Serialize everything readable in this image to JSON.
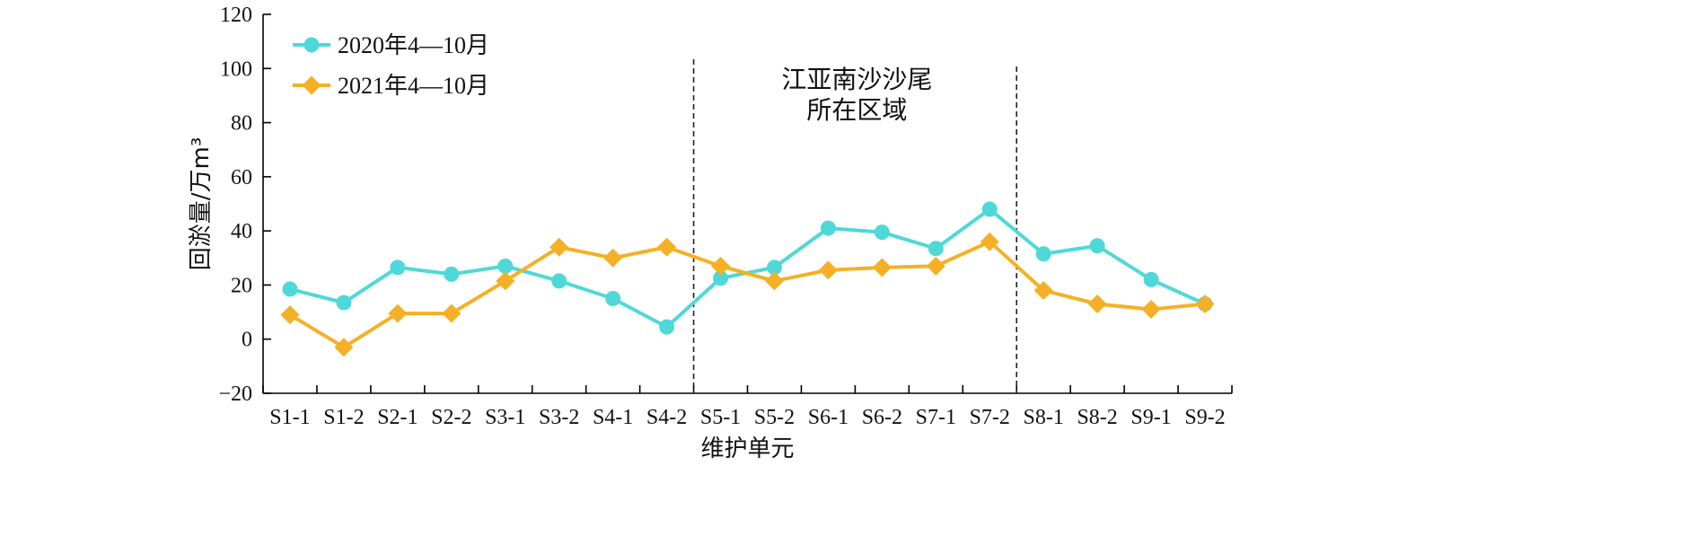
{
  "chart_data": {
    "type": "line",
    "title": "",
    "xlabel": "维护单元",
    "ylabel": "回淤量/万m³",
    "ylim": [
      -20,
      120
    ],
    "yticks": [
      -20,
      0,
      20,
      40,
      60,
      80,
      100,
      120
    ],
    "ytick_labels": [
      "−20",
      "0",
      "20",
      "40",
      "60",
      "80",
      "100",
      "120"
    ],
    "categories": [
      "S1-1",
      "S1-2",
      "S2-1",
      "S2-2",
      "S3-1",
      "S3-2",
      "S4-1",
      "S4-2",
      "S5-1",
      "S5-2",
      "S6-1",
      "S6-2",
      "S7-1",
      "S7-2",
      "S8-1",
      "S8-2",
      "S9-1",
      "S9-2"
    ],
    "series": [
      {
        "name": "2020年4—10月",
        "color": "#4fd8d8",
        "marker": "circle",
        "values": [
          18.5,
          13.5,
          26.5,
          24,
          27,
          21.5,
          15,
          4.5,
          22.5,
          26.5,
          41,
          39.5,
          33.5,
          48,
          31.5,
          34.5,
          22,
          13
        ]
      },
      {
        "name": "2021年4—10月",
        "color": "#f5b025",
        "marker": "diamond",
        "values": [
          9,
          -3,
          9.5,
          9.5,
          21.5,
          34,
          30,
          34,
          27,
          21.5,
          25.5,
          26.5,
          27,
          36,
          18,
          13,
          11,
          13
        ]
      }
    ],
    "annotation": {
      "lines": [
        "江亚南沙沙尾",
        "所在区域"
      ],
      "region_start_after": "S4-2",
      "region_end_after": "S7-2"
    },
    "legend_position": "top-left",
    "grid": false
  }
}
